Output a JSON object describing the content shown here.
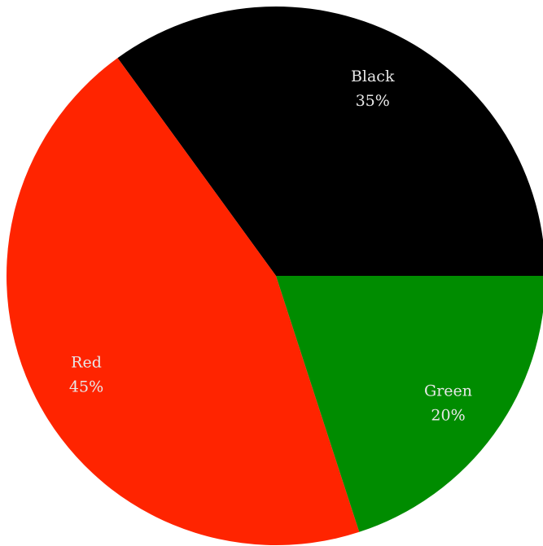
{
  "chart_data": {
    "type": "pie",
    "slices": [
      {
        "label": "Black",
        "value": 35,
        "display": "35%",
        "color": "#000000"
      },
      {
        "label": "Green",
        "value": 20,
        "display": "20%",
        "color": "#008c00"
      },
      {
        "label": "Red",
        "value": 45,
        "display": "45%",
        "color": "#ff2400"
      }
    ],
    "start_angle_deg": 0,
    "direction": "counterclockwise-from-right"
  }
}
